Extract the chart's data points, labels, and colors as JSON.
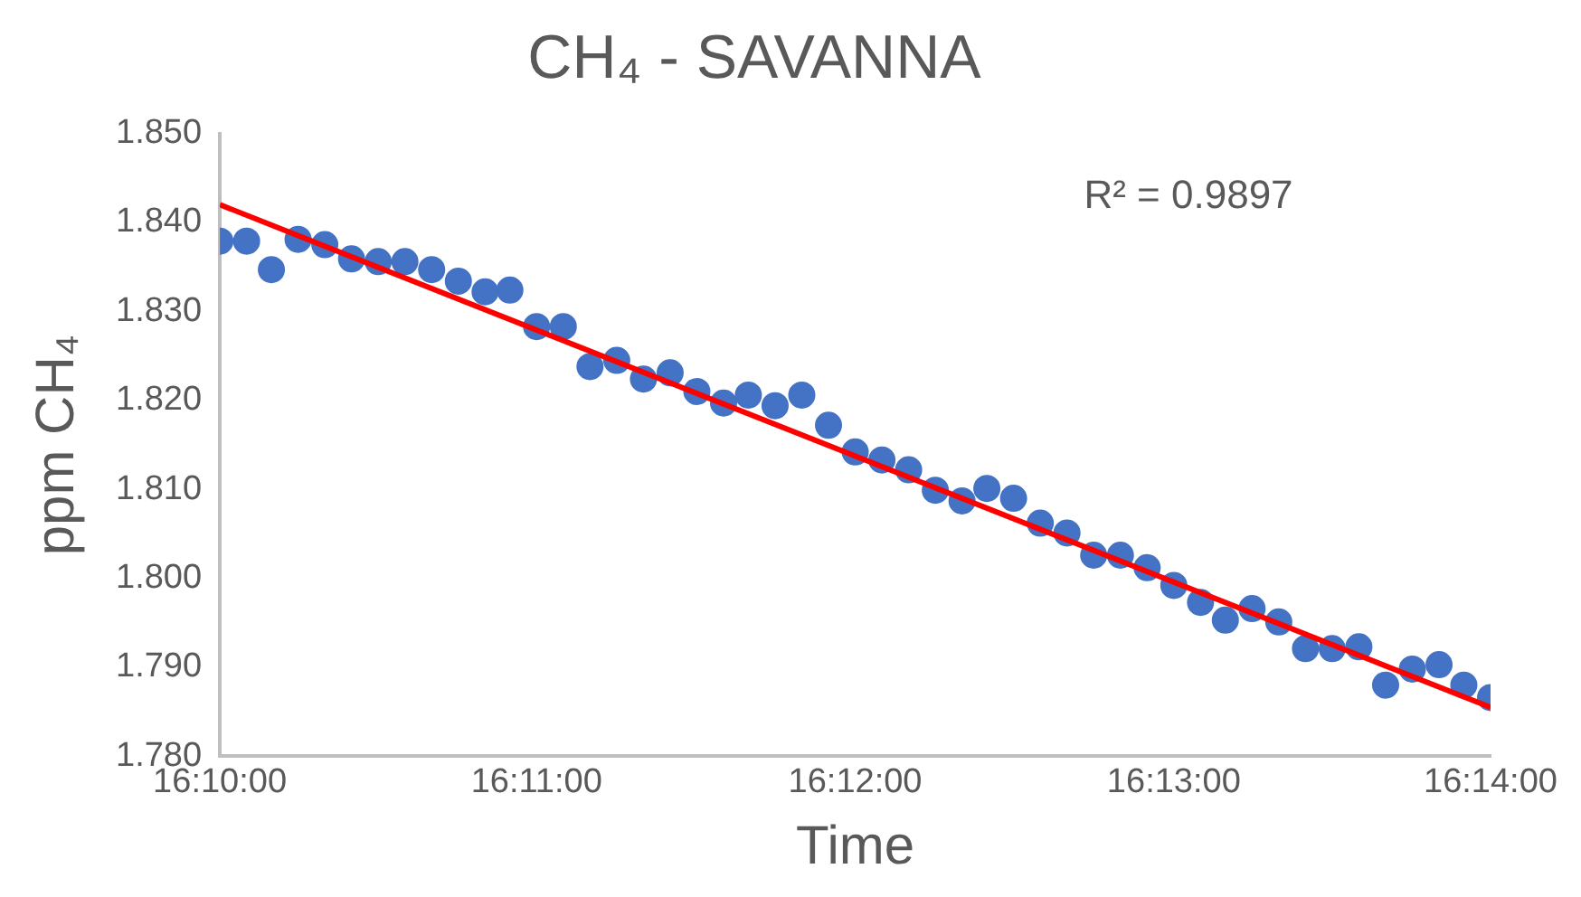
{
  "chart_data": {
    "type": "scatter",
    "title": "CH₄ - SAVANNA",
    "xlabel": "Time",
    "ylabel": "ppm CH₄",
    "annotations": [
      "R² = 0.9897"
    ],
    "xlim": [
      16.1667,
      16.2333
    ],
    "xticks": [
      {
        "value": 16.1667,
        "label": "16:10:00"
      },
      {
        "value": 16.1833,
        "label": "16:11:00"
      },
      {
        "value": 16.2,
        "label": "16:12:00"
      },
      {
        "value": 16.2167,
        "label": "16:13:00"
      },
      {
        "value": 16.2333,
        "label": "16:14:00"
      }
    ],
    "ylim": [
      1.78,
      1.85
    ],
    "yticks": [
      {
        "value": 1.78,
        "label": "1.780"
      },
      {
        "value": 1.79,
        "label": "1.790"
      },
      {
        "value": 1.8,
        "label": "1.800"
      },
      {
        "value": 1.81,
        "label": "1.810"
      },
      {
        "value": 1.82,
        "label": "1.820"
      },
      {
        "value": 1.83,
        "label": "1.830"
      },
      {
        "value": 1.84,
        "label": "1.840"
      },
      {
        "value": 1.85,
        "label": "1.850"
      }
    ],
    "grid": false,
    "legend": false,
    "x": [
      16.1667,
      16.1681,
      16.1694,
      16.1708,
      16.1722,
      16.1736,
      16.175,
      16.1764,
      16.1778,
      16.1792,
      16.1806,
      16.1819,
      16.1833,
      16.1847,
      16.1861,
      16.1875,
      16.1889,
      16.1903,
      16.1917,
      16.1931,
      16.1944,
      16.1958,
      16.1972,
      16.1986,
      16.2,
      16.2014,
      16.2028,
      16.2042,
      16.2056,
      16.2069,
      16.2083,
      16.2097,
      16.2111,
      16.2125,
      16.2139,
      16.2153,
      16.2167,
      16.2181,
      16.2194,
      16.2208,
      16.2222,
      16.2236,
      16.225,
      16.2264,
      16.2278,
      16.2292,
      16.2306,
      16.2319,
      16.2333
    ],
    "series": [
      {
        "marker": "circle",
        "color": "#4472c4",
        "values": [
          1.8379,
          1.8379,
          1.8347,
          1.8381,
          1.8375,
          1.8359,
          1.8356,
          1.8356,
          1.8347,
          1.8334,
          1.8322,
          1.8324,
          1.8283,
          1.8283,
          1.8238,
          1.8245,
          1.8224,
          1.8231,
          1.821,
          1.8197,
          1.8206,
          1.8194,
          1.8206,
          1.8172,
          1.8142,
          1.8133,
          1.8122,
          1.8099,
          1.8087,
          1.8101,
          1.809,
          1.8062,
          1.8051,
          1.8026,
          1.8026,
          1.8012,
          1.7992,
          1.7973,
          1.7953,
          1.7966,
          1.7951,
          1.7921,
          1.7921,
          1.7923,
          1.788,
          1.7898,
          1.7903,
          1.788,
          1.7866
        ]
      },
      {
        "type": "line",
        "marker": "none",
        "color": "#ff0000",
        "x": [
          16.1667,
          16.2333
        ],
        "values": [
          1.842,
          1.7855
        ]
      }
    ]
  }
}
